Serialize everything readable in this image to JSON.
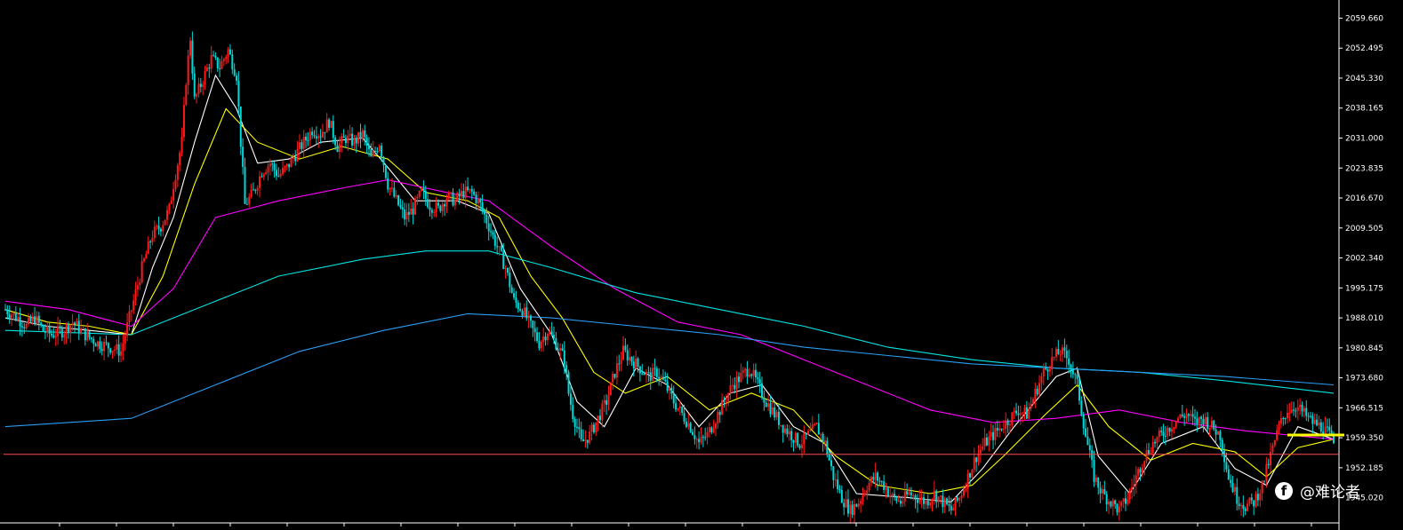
{
  "chart_data": {
    "type": "candlestick",
    "title": "",
    "xlabel": "",
    "ylabel": "",
    "ylim": [
      1939.0,
      2064.0
    ],
    "grid": false,
    "legend": "none",
    "y_ticks": [
      "2059.660",
      "2052.495",
      "2045.330",
      "2038.165",
      "2031.000",
      "2023.835",
      "2016.670",
      "2009.505",
      "2002.340",
      "1995.175",
      "1988.010",
      "1980.845",
      "1973.680",
      "1966.515",
      "1959.350",
      "1952.185",
      "1945.020"
    ],
    "price_line": 1955.4,
    "current_price_line": 1960.0,
    "close_path": [
      [
        0,
        1990
      ],
      [
        6,
        1988
      ],
      [
        10,
        1986
      ],
      [
        14,
        1988
      ],
      [
        18,
        1985
      ],
      [
        22,
        1984
      ],
      [
        28,
        1985
      ],
      [
        32,
        1987
      ],
      [
        38,
        1984
      ],
      [
        44,
        1982
      ],
      [
        50,
        1981
      ],
      [
        55,
        1980
      ],
      [
        60,
        1990
      ],
      [
        65,
        2000
      ],
      [
        70,
        2008
      ],
      [
        74,
        2010
      ],
      [
        78,
        2014
      ],
      [
        80,
        2020
      ],
      [
        84,
        2030
      ],
      [
        86,
        2045
      ],
      [
        88,
        2055
      ],
      [
        90,
        2040
      ],
      [
        94,
        2045
      ],
      [
        98,
        2050
      ],
      [
        102,
        2048
      ],
      [
        106,
        2052
      ],
      [
        110,
        2046
      ],
      [
        112,
        2030
      ],
      [
        114,
        2015
      ],
      [
        118,
        2018
      ],
      [
        122,
        2023
      ],
      [
        126,
        2025
      ],
      [
        130,
        2022
      ],
      [
        134,
        2024
      ],
      [
        138,
        2027
      ],
      [
        142,
        2030
      ],
      [
        146,
        2033
      ],
      [
        150,
        2032
      ],
      [
        154,
        2035
      ],
      [
        158,
        2029
      ],
      [
        162,
        2031
      ],
      [
        166,
        2030
      ],
      [
        170,
        2032
      ],
      [
        174,
        2026
      ],
      [
        178,
        2030
      ],
      [
        182,
        2020
      ],
      [
        186,
        2016
      ],
      [
        190,
        2012
      ],
      [
        194,
        2014
      ],
      [
        198,
        2018
      ],
      [
        202,
        2015
      ],
      [
        206,
        2014
      ],
      [
        210,
        2017
      ],
      [
        214,
        2016
      ],
      [
        218,
        2018
      ],
      [
        222,
        2018
      ],
      [
        226,
        2015
      ],
      [
        230,
        2010
      ],
      [
        234,
        2005
      ],
      [
        238,
        2000
      ],
      [
        242,
        1992
      ],
      [
        246,
        1990
      ],
      [
        250,
        1986
      ],
      [
        254,
        1982
      ],
      [
        258,
        1985
      ],
      [
        262,
        1982
      ],
      [
        266,
        1978
      ],
      [
        268,
        1970
      ],
      [
        270,
        1965
      ],
      [
        272,
        1962
      ],
      [
        274,
        1958
      ],
      [
        278,
        1960
      ],
      [
        282,
        1964
      ],
      [
        286,
        1968
      ],
      [
        290,
        1975
      ],
      [
        294,
        1980
      ],
      [
        298,
        1978
      ],
      [
        302,
        1976
      ],
      [
        306,
        1974
      ],
      [
        310,
        1975
      ],
      [
        314,
        1972
      ],
      [
        318,
        1968
      ],
      [
        322,
        1965
      ],
      [
        326,
        1962
      ],
      [
        330,
        1958
      ],
      [
        334,
        1960
      ],
      [
        338,
        1964
      ],
      [
        342,
        1968
      ],
      [
        346,
        1972
      ],
      [
        350,
        1974
      ],
      [
        354,
        1976
      ],
      [
        358,
        1972
      ],
      [
        362,
        1968
      ],
      [
        366,
        1965
      ],
      [
        370,
        1962
      ],
      [
        374,
        1960
      ],
      [
        378,
        1958
      ],
      [
        382,
        1960
      ],
      [
        386,
        1962
      ],
      [
        390,
        1958
      ],
      [
        394,
        1950
      ],
      [
        398,
        1945
      ],
      [
        402,
        1942
      ],
      [
        406,
        1944
      ],
      [
        410,
        1948
      ],
      [
        414,
        1950
      ],
      [
        418,
        1948
      ],
      [
        422,
        1945
      ],
      [
        426,
        1944
      ],
      [
        430,
        1946
      ],
      [
        434,
        1945
      ],
      [
        438,
        1944
      ],
      [
        442,
        1946
      ],
      [
        446,
        1944
      ],
      [
        450,
        1942
      ],
      [
        454,
        1945
      ],
      [
        458,
        1950
      ],
      [
        462,
        1955
      ],
      [
        466,
        1958
      ],
      [
        470,
        1960
      ],
      [
        474,
        1962
      ],
      [
        478,
        1964
      ],
      [
        482,
        1966
      ],
      [
        486,
        1965
      ],
      [
        490,
        1970
      ],
      [
        494,
        1975
      ],
      [
        498,
        1978
      ],
      [
        502,
        1980
      ],
      [
        506,
        1978
      ],
      [
        510,
        1972
      ],
      [
        514,
        1960
      ],
      [
        518,
        1950
      ],
      [
        522,
        1946
      ],
      [
        526,
        1944
      ],
      [
        530,
        1942
      ],
      [
        534,
        1945
      ],
      [
        538,
        1950
      ],
      [
        542,
        1955
      ],
      [
        546,
        1958
      ],
      [
        550,
        1960
      ],
      [
        554,
        1962
      ],
      [
        558,
        1964
      ],
      [
        562,
        1965
      ],
      [
        566,
        1963
      ],
      [
        570,
        1964
      ],
      [
        574,
        1962
      ],
      [
        578,
        1960
      ],
      [
        582,
        1950
      ],
      [
        586,
        1945
      ],
      [
        590,
        1943
      ],
      [
        594,
        1944
      ],
      [
        598,
        1948
      ],
      [
        602,
        1955
      ],
      [
        606,
        1962
      ],
      [
        610,
        1966
      ],
      [
        614,
        1967
      ],
      [
        618,
        1965
      ],
      [
        622,
        1963
      ],
      [
        626,
        1962
      ],
      [
        630,
        1960
      ],
      [
        632,
        1958
      ]
    ],
    "overlays": [
      {
        "color": "#ffffff",
        "points": [
          [
            0,
            1988
          ],
          [
            20,
            1986
          ],
          [
            40,
            1985
          ],
          [
            60,
            1984
          ],
          [
            70,
            2000
          ],
          [
            80,
            2012
          ],
          [
            90,
            2030
          ],
          [
            100,
            2046
          ],
          [
            110,
            2038
          ],
          [
            120,
            2025
          ],
          [
            135,
            2026
          ],
          [
            150,
            2030
          ],
          [
            170,
            2031
          ],
          [
            182,
            2024
          ],
          [
            195,
            2016
          ],
          [
            215,
            2016
          ],
          [
            230,
            2013
          ],
          [
            245,
            1995
          ],
          [
            260,
            1984
          ],
          [
            272,
            1968
          ],
          [
            285,
            1962
          ],
          [
            300,
            1976
          ],
          [
            315,
            1972
          ],
          [
            330,
            1962
          ],
          [
            345,
            1970
          ],
          [
            360,
            1972
          ],
          [
            375,
            1962
          ],
          [
            390,
            1958
          ],
          [
            405,
            1946
          ],
          [
            430,
            1945
          ],
          [
            450,
            1944
          ],
          [
            465,
            1952
          ],
          [
            480,
            1962
          ],
          [
            500,
            1974
          ],
          [
            510,
            1976
          ],
          [
            520,
            1955
          ],
          [
            535,
            1946
          ],
          [
            550,
            1958
          ],
          [
            570,
            1962
          ],
          [
            585,
            1952
          ],
          [
            600,
            1948
          ],
          [
            615,
            1962
          ],
          [
            632,
            1959
          ]
        ]
      },
      {
        "color": "#ffff00",
        "points": [
          [
            0,
            1990
          ],
          [
            20,
            1987
          ],
          [
            40,
            1986
          ],
          [
            60,
            1984
          ],
          [
            75,
            1998
          ],
          [
            90,
            2020
          ],
          [
            105,
            2038
          ],
          [
            120,
            2030
          ],
          [
            140,
            2026
          ],
          [
            160,
            2029
          ],
          [
            182,
            2026
          ],
          [
            200,
            2018
          ],
          [
            220,
            2016
          ],
          [
            235,
            2012
          ],
          [
            250,
            1998
          ],
          [
            265,
            1988
          ],
          [
            280,
            1975
          ],
          [
            295,
            1970
          ],
          [
            315,
            1974
          ],
          [
            335,
            1966
          ],
          [
            355,
            1970
          ],
          [
            375,
            1966
          ],
          [
            395,
            1955
          ],
          [
            415,
            1948
          ],
          [
            440,
            1946
          ],
          [
            460,
            1948
          ],
          [
            475,
            1955
          ],
          [
            495,
            1965
          ],
          [
            510,
            1972
          ],
          [
            525,
            1962
          ],
          [
            545,
            1954
          ],
          [
            565,
            1958
          ],
          [
            585,
            1956
          ],
          [
            600,
            1950
          ],
          [
            615,
            1957
          ],
          [
            632,
            1959
          ]
        ]
      },
      {
        "color": "#ff00ff",
        "points": [
          [
            0,
            1992
          ],
          [
            30,
            1990
          ],
          [
            60,
            1986
          ],
          [
            80,
            1995
          ],
          [
            100,
            2012
          ],
          [
            130,
            2016
          ],
          [
            160,
            2019
          ],
          [
            182,
            2021
          ],
          [
            210,
            2018
          ],
          [
            230,
            2016
          ],
          [
            260,
            2005
          ],
          [
            290,
            1995
          ],
          [
            320,
            1987
          ],
          [
            350,
            1984
          ],
          [
            380,
            1978
          ],
          [
            410,
            1972
          ],
          [
            440,
            1966
          ],
          [
            470,
            1963
          ],
          [
            500,
            1964
          ],
          [
            530,
            1966
          ],
          [
            560,
            1963
          ],
          [
            590,
            1961
          ],
          [
            632,
            1959
          ]
        ]
      },
      {
        "color": "#00e5e5",
        "points": [
          [
            0,
            1985
          ],
          [
            60,
            1984
          ],
          [
            100,
            1992
          ],
          [
            130,
            1998
          ],
          [
            170,
            2002
          ],
          [
            200,
            2004
          ],
          [
            230,
            2004
          ],
          [
            260,
            2000
          ],
          [
            300,
            1994
          ],
          [
            340,
            1990
          ],
          [
            380,
            1986
          ],
          [
            420,
            1981
          ],
          [
            460,
            1978
          ],
          [
            500,
            1976
          ],
          [
            540,
            1975
          ],
          [
            580,
            1973
          ],
          [
            632,
            1970
          ]
        ]
      },
      {
        "color": "#2a9df4",
        "points": [
          [
            0,
            1962
          ],
          [
            60,
            1964
          ],
          [
            100,
            1972
          ],
          [
            140,
            1980
          ],
          [
            180,
            1985
          ],
          [
            220,
            1989
          ],
          [
            260,
            1988
          ],
          [
            300,
            1986
          ],
          [
            340,
            1984
          ],
          [
            380,
            1981
          ],
          [
            420,
            1979
          ],
          [
            460,
            1977
          ],
          [
            500,
            1976
          ],
          [
            540,
            1975
          ],
          [
            580,
            1974
          ],
          [
            632,
            1972
          ]
        ]
      }
    ]
  },
  "watermark": {
    "icon": "facebook-icon",
    "text": "@难论者"
  }
}
